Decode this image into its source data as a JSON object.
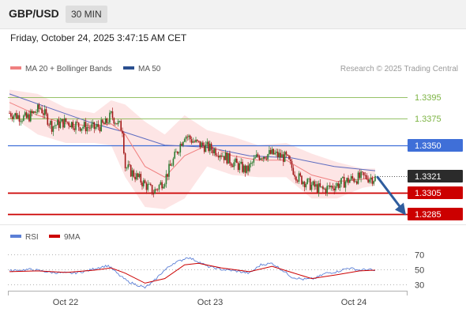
{
  "header": {
    "pair": "GBP/USD",
    "timeframe": "30 MIN"
  },
  "timestamp": "Friday, October 24, 2025 3:47:15 AM CET",
  "colors": {
    "candle_up": "#2e7d32",
    "candle_down": "#a31919",
    "ma20": "#f08080",
    "ma50": "#5c6bc0",
    "bands": "#fde0e0",
    "resistance": "#7cb342",
    "pivot": "#3f6fd8",
    "support": "#cc0000",
    "rsi": "#5b7fd6",
    "rsi_ma": "#cc0000",
    "arrow": "#2f5d9e"
  },
  "chart_data": [
    {
      "type": "candlestick",
      "legend": [
        {
          "name": "MA 20 + Bollinger Bands",
          "color": "#f08080"
        },
        {
          "name": "MA 50",
          "color": "#5c6bc0"
        }
      ],
      "credit": "Research © 2025 Trading Central",
      "x_ticks": [
        "Oct 22",
        "Oct 23",
        "Oct 24"
      ],
      "ylim": [
        1.3275,
        1.3415
      ],
      "levels": [
        {
          "label": "1.3395",
          "value": 1.3395,
          "kind": "resistance"
        },
        {
          "label": "1.3375",
          "value": 1.3375,
          "kind": "resistance"
        },
        {
          "label": "1.3350",
          "value": 1.335,
          "kind": "pivot"
        },
        {
          "label": "1.3321",
          "value": 1.3321,
          "kind": "last"
        },
        {
          "label": "1.3305",
          "value": 1.3305,
          "kind": "support"
        },
        {
          "label": "1.3285",
          "value": 1.3285,
          "kind": "support"
        }
      ],
      "close_path": [
        [
          0,
          1.338
        ],
        [
          12,
          1.3375
        ],
        [
          22,
          1.3385
        ],
        [
          30,
          1.3368
        ],
        [
          40,
          1.3372
        ],
        [
          50,
          1.3368
        ],
        [
          60,
          1.3366
        ],
        [
          68,
          1.337
        ],
        [
          72,
          1.3378
        ],
        [
          80,
          1.3365
        ],
        [
          82,
          1.333
        ],
        [
          92,
          1.3318
        ],
        [
          102,
          1.3306
        ],
        [
          110,
          1.3318
        ],
        [
          118,
          1.3342
        ],
        [
          124,
          1.336
        ],
        [
          132,
          1.3352
        ],
        [
          140,
          1.3348
        ],
        [
          148,
          1.3344
        ],
        [
          158,
          1.3334
        ],
        [
          168,
          1.3326
        ],
        [
          176,
          1.334
        ],
        [
          186,
          1.3342
        ],
        [
          196,
          1.3338
        ],
        [
          204,
          1.332
        ],
        [
          214,
          1.3312
        ],
        [
          222,
          1.3308
        ],
        [
          232,
          1.3313
        ],
        [
          242,
          1.3318
        ],
        [
          250,
          1.332
        ],
        [
          259,
          1.3319
        ]
      ],
      "ma20_path": [
        [
          0,
          1.339
        ],
        [
          20,
          1.3378
        ],
        [
          40,
          1.337
        ],
        [
          60,
          1.3368
        ],
        [
          72,
          1.337
        ],
        [
          82,
          1.336
        ],
        [
          96,
          1.333
        ],
        [
          110,
          1.332
        ],
        [
          124,
          1.334
        ],
        [
          140,
          1.335
        ],
        [
          158,
          1.334
        ],
        [
          176,
          1.3336
        ],
        [
          196,
          1.3336
        ],
        [
          214,
          1.3322
        ],
        [
          232,
          1.3316
        ],
        [
          250,
          1.3318
        ],
        [
          259,
          1.332
        ]
      ],
      "ma50_path": [
        [
          0,
          1.3398
        ],
        [
          30,
          1.3384
        ],
        [
          60,
          1.337
        ],
        [
          82,
          1.3362
        ],
        [
          110,
          1.335
        ],
        [
          140,
          1.3348
        ],
        [
          170,
          1.334
        ],
        [
          200,
          1.3338
        ],
        [
          230,
          1.333
        ],
        [
          259,
          1.3326
        ]
      ],
      "band_upper": [
        [
          0,
          1.3402
        ],
        [
          20,
          1.3398
        ],
        [
          40,
          1.3385
        ],
        [
          60,
          1.338
        ],
        [
          72,
          1.3392
        ],
        [
          82,
          1.3388
        ],
        [
          96,
          1.3372
        ],
        [
          110,
          1.336
        ],
        [
          124,
          1.3378
        ],
        [
          140,
          1.3364
        ],
        [
          158,
          1.3358
        ],
        [
          176,
          1.335
        ],
        [
          196,
          1.3352
        ],
        [
          214,
          1.3342
        ],
        [
          232,
          1.3334
        ],
        [
          250,
          1.3328
        ],
        [
          259,
          1.3328
        ]
      ],
      "band_lower": [
        [
          0,
          1.3378
        ],
        [
          20,
          1.336
        ],
        [
          40,
          1.3352
        ],
        [
          60,
          1.3352
        ],
        [
          72,
          1.335
        ],
        [
          82,
          1.332
        ],
        [
          96,
          1.3292
        ],
        [
          110,
          1.329
        ],
        [
          124,
          1.33
        ],
        [
          140,
          1.333
        ],
        [
          158,
          1.3322
        ],
        [
          176,
          1.332
        ],
        [
          196,
          1.332
        ],
        [
          214,
          1.33
        ],
        [
          232,
          1.33
        ],
        [
          250,
          1.331
        ],
        [
          259,
          1.3312
        ]
      ],
      "forecast_arrow": {
        "from": 1.332,
        "to": 1.3285
      }
    },
    {
      "type": "line",
      "legend": [
        {
          "name": "RSI",
          "color": "#5b7fd6"
        },
        {
          "name": "9MA",
          "color": "#cc0000"
        }
      ],
      "y_ticks": [
        "70",
        "50",
        "30"
      ],
      "ylim": [
        18,
        82
      ],
      "series": [
        {
          "name": "RSI",
          "points": [
            [
              0,
              48
            ],
            [
              15,
              50
            ],
            [
              30,
              46
            ],
            [
              45,
              45
            ],
            [
              55,
              48
            ],
            [
              62,
              52
            ],
            [
              70,
              55
            ],
            [
              78,
              42
            ],
            [
              84,
              34
            ],
            [
              90,
              30
            ],
            [
              96,
              26
            ],
            [
              102,
              34
            ],
            [
              108,
              46
            ],
            [
              116,
              58
            ],
            [
              122,
              62
            ],
            [
              126,
              66
            ],
            [
              134,
              60
            ],
            [
              140,
              54
            ],
            [
              150,
              50
            ],
            [
              160,
              48
            ],
            [
              170,
              45
            ],
            [
              178,
              56
            ],
            [
              186,
              58
            ],
            [
              194,
              48
            ],
            [
              200,
              40
            ],
            [
              208,
              37
            ],
            [
              216,
              38
            ],
            [
              224,
              45
            ],
            [
              232,
              47
            ],
            [
              240,
              52
            ],
            [
              248,
              49
            ],
            [
              254,
              50
            ],
            [
              259,
              48
            ]
          ]
        },
        {
          "name": "9MA",
          "points": [
            [
              0,
              47
            ],
            [
              20,
              48
            ],
            [
              40,
              46
            ],
            [
              60,
              49
            ],
            [
              72,
              52
            ],
            [
              82,
              45
            ],
            [
              96,
              32
            ],
            [
              110,
              38
            ],
            [
              124,
              56
            ],
            [
              134,
              58
            ],
            [
              150,
              52
            ],
            [
              170,
              47
            ],
            [
              186,
              54
            ],
            [
              200,
              46
            ],
            [
              214,
              38
            ],
            [
              232,
              43
            ],
            [
              248,
              48
            ],
            [
              259,
              49
            ]
          ]
        }
      ]
    }
  ]
}
